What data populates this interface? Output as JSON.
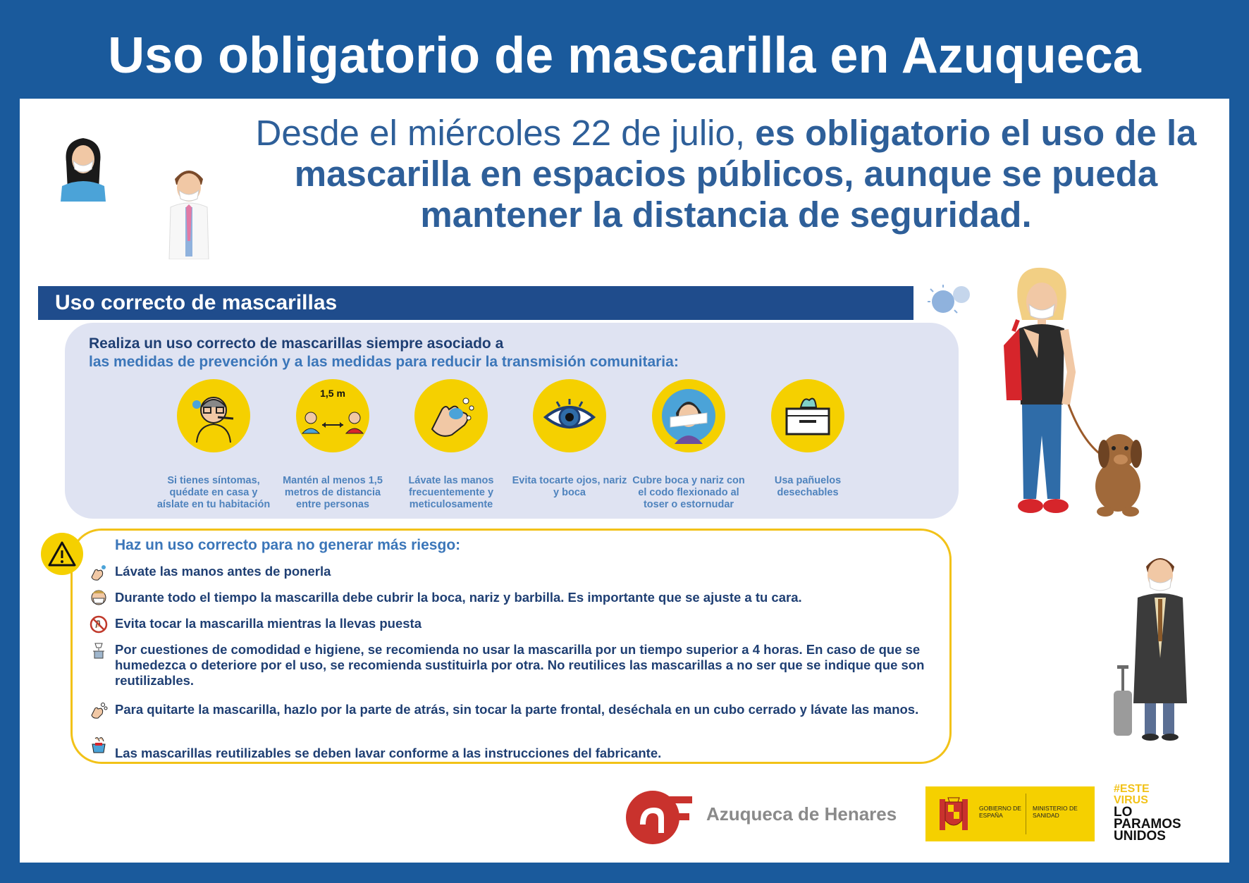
{
  "title": "Uso obligatorio de mascarilla en Azuqueca",
  "headline": {
    "light": "Desde el miércoles 22 de julio, ",
    "bold": "es obligatorio el uso de la mascarilla en espacios públicos, aunque se pueda mantener la distancia de seguridad."
  },
  "section": {
    "title": "Uso correcto de mascarillas",
    "intro_line1": "Realiza un uso correcto de mascarillas siempre asociado a",
    "intro_line2": "las medidas de prevención y a las medidas para reducir la transmisión comunitaria:",
    "distance_label": "1,5 m",
    "measures": [
      {
        "icon": "sick-person-icon",
        "caption": "Si tienes síntomas, quédate en casa y aíslate en tu habitación"
      },
      {
        "icon": "distance-icon",
        "caption": "Mantén al menos 1,5 metros de distancia entre personas"
      },
      {
        "icon": "hand-wash-icon",
        "caption": "Lávate las manos frecuentemente y meticulosamente"
      },
      {
        "icon": "eye-icon",
        "caption": "Evita tocarte ojos, nariz y boca"
      },
      {
        "icon": "elbow-sneeze-icon",
        "caption": "Cubre boca y nariz con el codo flexionado al toser o estornudar"
      },
      {
        "icon": "tissue-box-icon",
        "caption": "Usa pañuelos desechables"
      }
    ]
  },
  "warning": {
    "title": "Haz un uso correcto para no generar más riesgo:",
    "rules": [
      {
        "icon": "hand-soap-icon",
        "text": "Lávate las manos antes de ponerla"
      },
      {
        "icon": "mask-face-icon",
        "text": "Durante todo el tiempo la mascarilla debe cubrir la boca, nariz y barbilla. Es importante que se ajuste a tu cara."
      },
      {
        "icon": "no-touch-icon",
        "text": "Evita tocar la mascarilla mientras la llevas puesta"
      },
      {
        "icon": "mask-bin-icon",
        "text": "Por cuestiones de comodidad e higiene, se recomienda no usar la mascarilla por un tiempo superior a 4 horas. En caso de que se humedezca o deteriore por el uso, se recomienda sustituirla por otra. No reutilices las mascarillas a no ser que se indique que son reutilizables."
      },
      {
        "icon": "hand-wash-small-icon",
        "text": "Para quitarte la mascarilla, hazlo por la parte de atrás, sin tocar la parte frontal, deséchala en un cubo cerrado y lávate las manos."
      },
      {
        "icon": "washing-icon",
        "text": "Las mascarillas reutilizables se deben lavar conforme a las instrucciones del fabricante."
      }
    ]
  },
  "footer": {
    "azuqueca": "Azuqueca de Henares",
    "gobierno": "GOBIERNO DE ESPAÑA",
    "ministerio": "MINISTERIO DE SANIDAD",
    "este": "#ESTE",
    "virus": "VIRUS",
    "lo": "LO",
    "paramos": "PARAMOS",
    "unidos": "UNIDOS"
  },
  "colors": {
    "blue": "#1a5a9c",
    "yellow": "#f5d000",
    "text_blue": "#3b76b9"
  }
}
